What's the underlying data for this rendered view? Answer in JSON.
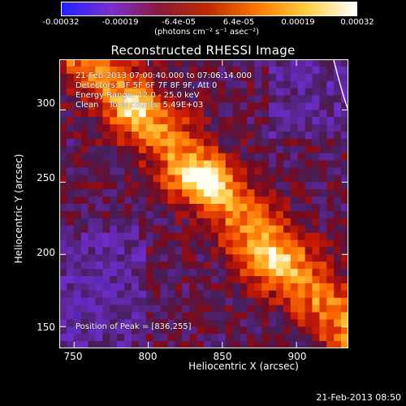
{
  "colorbar": {
    "ticks": [
      "-0.00032",
      "-0.00019",
      "-6.4e-05",
      "6.4e-05",
      "0.00019",
      "0.00032"
    ],
    "units": "(photons cm⁻² s⁻¹ asec⁻²)",
    "colors": [
      "#2222ff",
      "#7a2fd0",
      "#8c1a3a",
      "#c22a00",
      "#ff7a00",
      "#ffd040",
      "#ffffff"
    ]
  },
  "chart_data": {
    "type": "heatmap",
    "title": "Reconstructed RHESSI Image",
    "xlabel": "Heliocentric X (arcsec)",
    "ylabel": "Heliocentric Y (arcsec)",
    "xlim": [
      740,
      935
    ],
    "ylim": [
      135,
      335
    ],
    "xticks": [
      750,
      800,
      850,
      900
    ],
    "yticks": [
      150,
      200,
      250,
      300
    ],
    "value_range": [
      -0.00032,
      0.00032
    ],
    "peak_position": [
      836,
      255
    ],
    "annotations": [
      "21-Feb-2013 07:00:40.000 to 07:06:14.000",
      "Detectors: 3F 5F 6F 7F 8F 9F, Att 0",
      "Energy Range: 12.0 - 25.0 keV",
      "Clean    Total counts: 5.49E+03",
      "Position of Peak = [836,255]"
    ]
  },
  "footer": {
    "timestamp": "21-Feb-2013 08:50"
  }
}
